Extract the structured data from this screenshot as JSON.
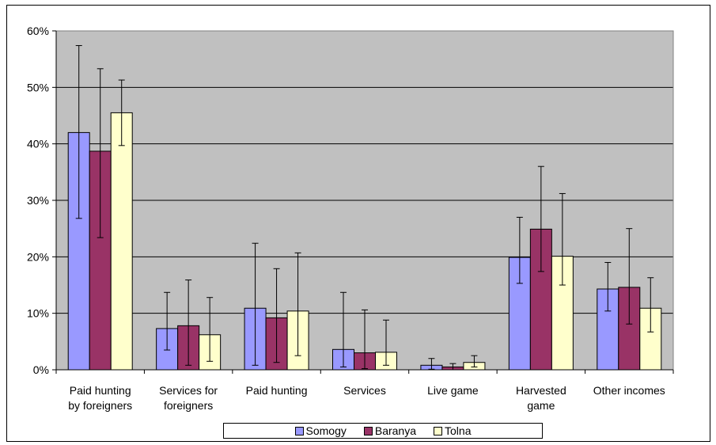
{
  "chart_data": {
    "type": "bar",
    "title": "",
    "xlabel": "",
    "ylabel": "",
    "ylim": [
      0,
      0.6
    ],
    "yticks": [
      "0%",
      "10%",
      "20%",
      "30%",
      "40%",
      "50%",
      "60%"
    ],
    "grid": true,
    "plot_background": "#C0C0C0",
    "legend_position": "bottom",
    "categories": [
      [
        "Paid hunting",
        "by foreigners"
      ],
      [
        "Services for",
        "foreigners"
      ],
      [
        "Paid hunting"
      ],
      [
        "Services"
      ],
      [
        "Live game"
      ],
      [
        "Harvested",
        "game"
      ],
      [
        "Other incomes"
      ]
    ],
    "series": [
      {
        "name": "Somogy",
        "color": "#9999FF",
        "values": [
          0.42,
          0.073,
          0.109,
          0.036,
          0.008,
          0.199,
          0.143
        ],
        "error_low": [
          0.268,
          0.035,
          0.008,
          0.005,
          0.001,
          0.153,
          0.104
        ],
        "error_high": [
          0.574,
          0.137,
          0.224,
          0.137,
          0.02,
          0.27,
          0.19
        ]
      },
      {
        "name": "Baranya",
        "color": "#993366",
        "values": [
          0.387,
          0.078,
          0.092,
          0.03,
          0.005,
          0.249,
          0.146
        ],
        "error_low": [
          0.234,
          0.008,
          0.013,
          0.002,
          0.0,
          0.174,
          0.081
        ],
        "error_high": [
          0.533,
          0.159,
          0.179,
          0.106,
          0.011,
          0.36,
          0.25
        ]
      },
      {
        "name": "Tolna",
        "color": "#FFFFCC",
        "values": [
          0.455,
          0.062,
          0.104,
          0.031,
          0.013,
          0.201,
          0.109
        ],
        "error_low": [
          0.397,
          0.015,
          0.025,
          0.008,
          0.005,
          0.15,
          0.067
        ],
        "error_high": [
          0.513,
          0.128,
          0.207,
          0.088,
          0.025,
          0.312,
          0.163
        ]
      }
    ]
  }
}
